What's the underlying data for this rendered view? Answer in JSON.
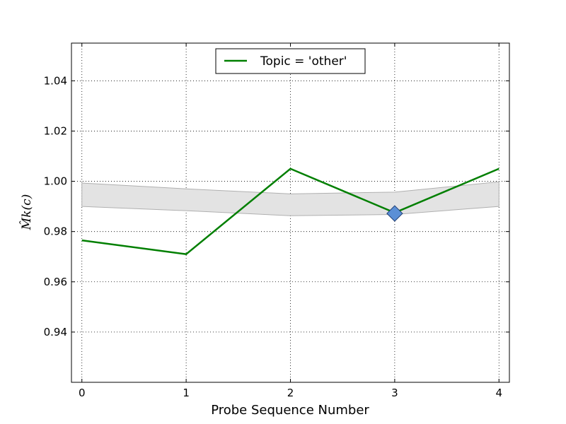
{
  "chart_data": {
    "type": "line",
    "title": "",
    "xlabel": "Probe Sequence Number",
    "ylabel": "M̂k(c)",
    "x": [
      0,
      1,
      2,
      3,
      4
    ],
    "xlim": [
      -0.1,
      4.1
    ],
    "ylim": [
      0.92,
      1.055
    ],
    "x_ticks": [
      "0",
      "1",
      "2",
      "3",
      "4"
    ],
    "y_ticks": [
      0.94,
      0.96,
      0.98,
      1.0,
      1.02,
      1.04
    ],
    "y_tick_labels": [
      "0.94",
      "0.96",
      "0.98",
      "1.00",
      "1.02",
      "1.04"
    ],
    "grid": true,
    "legend_position": "top-center",
    "series": [
      {
        "name": "Topic = 'other'",
        "values": [
          0.9765,
          0.971,
          1.005,
          0.9875,
          1.005
        ],
        "color": "#007f00"
      }
    ],
    "band": {
      "upper": [
        0.9993,
        0.997,
        0.995,
        0.9957,
        0.9998
      ],
      "lower": [
        0.99,
        0.9883,
        0.9863,
        0.9868,
        0.99
      ],
      "color": "#e3e3e3"
    },
    "marker": {
      "x": 3,
      "y": 0.9872,
      "shape": "diamond",
      "color": "#5b8fd6"
    }
  }
}
